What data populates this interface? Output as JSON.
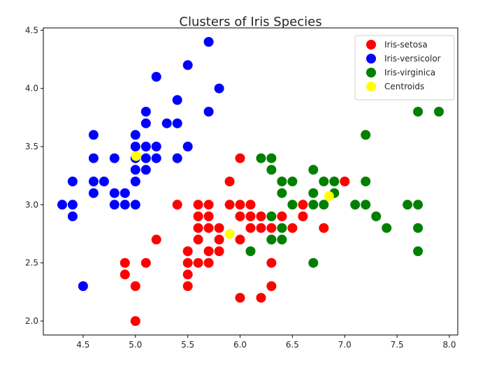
{
  "chart_data": {
    "type": "scatter",
    "title": "Clusters of Iris Species",
    "xlabel": "",
    "ylabel": "",
    "xlim": [
      4.12,
      8.08
    ],
    "ylim": [
      1.88,
      4.52
    ],
    "xticks": [
      "4.5",
      "5.0",
      "5.5",
      "6.0",
      "6.5",
      "7.0",
      "7.5",
      "8.0"
    ],
    "yticks": [
      "2.0",
      "2.5",
      "3.0",
      "3.5",
      "4.0",
      "4.5"
    ],
    "grid": false,
    "legend_position": "top-right",
    "series": [
      {
        "name": "Iris-setosa",
        "color": "#ff0000",
        "points": [
          [
            6.0,
            3.4
          ],
          [
            5.9,
            3.2
          ],
          [
            7.0,
            3.2
          ],
          [
            5.4,
            3.0
          ],
          [
            5.6,
            3.0
          ],
          [
            5.7,
            3.0
          ],
          [
            5.9,
            3.0
          ],
          [
            6.0,
            3.0
          ],
          [
            6.1,
            3.0
          ],
          [
            6.6,
            3.0
          ],
          [
            5.6,
            2.9
          ],
          [
            5.7,
            2.9
          ],
          [
            6.0,
            2.9
          ],
          [
            6.1,
            2.9
          ],
          [
            6.2,
            2.9
          ],
          [
            6.4,
            2.9
          ],
          [
            6.6,
            2.9
          ],
          [
            5.6,
            2.8
          ],
          [
            5.7,
            2.8
          ],
          [
            5.8,
            2.8
          ],
          [
            6.1,
            2.8
          ],
          [
            6.2,
            2.8
          ],
          [
            6.3,
            2.8
          ],
          [
            6.5,
            2.8
          ],
          [
            6.8,
            2.8
          ],
          [
            5.2,
            2.7
          ],
          [
            5.6,
            2.7
          ],
          [
            5.8,
            2.7
          ],
          [
            6.0,
            2.7
          ],
          [
            6.3,
            2.7
          ],
          [
            5.5,
            2.6
          ],
          [
            5.7,
            2.6
          ],
          [
            5.8,
            2.6
          ],
          [
            4.9,
            2.5
          ],
          [
            5.1,
            2.5
          ],
          [
            5.5,
            2.5
          ],
          [
            5.6,
            2.5
          ],
          [
            5.7,
            2.5
          ],
          [
            6.3,
            2.5
          ],
          [
            4.9,
            2.4
          ],
          [
            5.5,
            2.4
          ],
          [
            5.0,
            2.3
          ],
          [
            5.5,
            2.3
          ],
          [
            6.3,
            2.3
          ],
          [
            6.0,
            2.2
          ],
          [
            6.2,
            2.2
          ],
          [
            5.0,
            2.0
          ]
        ]
      },
      {
        "name": "Iris-versicolor",
        "color": "#0000ff",
        "points": [
          [
            5.7,
            4.4
          ],
          [
            5.5,
            4.2
          ],
          [
            5.2,
            4.1
          ],
          [
            5.8,
            4.0
          ],
          [
            5.4,
            3.9
          ],
          [
            5.1,
            3.8
          ],
          [
            5.7,
            3.8
          ],
          [
            5.1,
            3.7
          ],
          [
            5.3,
            3.7
          ],
          [
            5.4,
            3.7
          ],
          [
            4.6,
            3.6
          ],
          [
            5.0,
            3.6
          ],
          [
            5.0,
            3.5
          ],
          [
            5.1,
            3.5
          ],
          [
            5.2,
            3.5
          ],
          [
            5.5,
            3.5
          ],
          [
            4.6,
            3.4
          ],
          [
            4.8,
            3.4
          ],
          [
            5.0,
            3.4
          ],
          [
            5.1,
            3.4
          ],
          [
            5.2,
            3.4
          ],
          [
            5.4,
            3.4
          ],
          [
            5.0,
            3.3
          ],
          [
            5.1,
            3.3
          ],
          [
            4.4,
            3.2
          ],
          [
            4.6,
            3.2
          ],
          [
            4.7,
            3.2
          ],
          [
            5.0,
            3.2
          ],
          [
            4.6,
            3.1
          ],
          [
            4.8,
            3.1
          ],
          [
            4.9,
            3.1
          ],
          [
            4.3,
            3.0
          ],
          [
            4.4,
            3.0
          ],
          [
            4.8,
            3.0
          ],
          [
            4.9,
            3.0
          ],
          [
            5.0,
            3.0
          ],
          [
            4.4,
            2.9
          ],
          [
            4.5,
            2.3
          ]
        ]
      },
      {
        "name": "Iris-virginica",
        "color": "#008000",
        "points": [
          [
            7.7,
            3.8
          ],
          [
            7.9,
            3.8
          ],
          [
            7.2,
            3.6
          ],
          [
            6.2,
            3.4
          ],
          [
            6.3,
            3.4
          ],
          [
            6.3,
            3.3
          ],
          [
            6.7,
            3.3
          ],
          [
            6.4,
            3.2
          ],
          [
            6.5,
            3.2
          ],
          [
            6.8,
            3.2
          ],
          [
            6.9,
            3.2
          ],
          [
            7.2,
            3.2
          ],
          [
            6.4,
            3.1
          ],
          [
            6.7,
            3.1
          ],
          [
            6.9,
            3.1
          ],
          [
            6.5,
            3.0
          ],
          [
            6.7,
            3.0
          ],
          [
            6.8,
            3.0
          ],
          [
            7.1,
            3.0
          ],
          [
            7.2,
            3.0
          ],
          [
            7.6,
            3.0
          ],
          [
            7.7,
            3.0
          ],
          [
            6.3,
            2.9
          ],
          [
            7.3,
            2.9
          ],
          [
            6.4,
            2.8
          ],
          [
            7.4,
            2.8
          ],
          [
            7.7,
            2.8
          ],
          [
            6.3,
            2.7
          ],
          [
            6.4,
            2.7
          ],
          [
            6.1,
            2.6
          ],
          [
            7.7,
            2.6
          ],
          [
            6.7,
            2.5
          ]
        ]
      },
      {
        "name": "Centroids",
        "color": "#ffff00",
        "points": [
          [
            5.006,
            3.418
          ],
          [
            5.9,
            2.748
          ],
          [
            6.85,
            3.074
          ]
        ]
      }
    ]
  }
}
